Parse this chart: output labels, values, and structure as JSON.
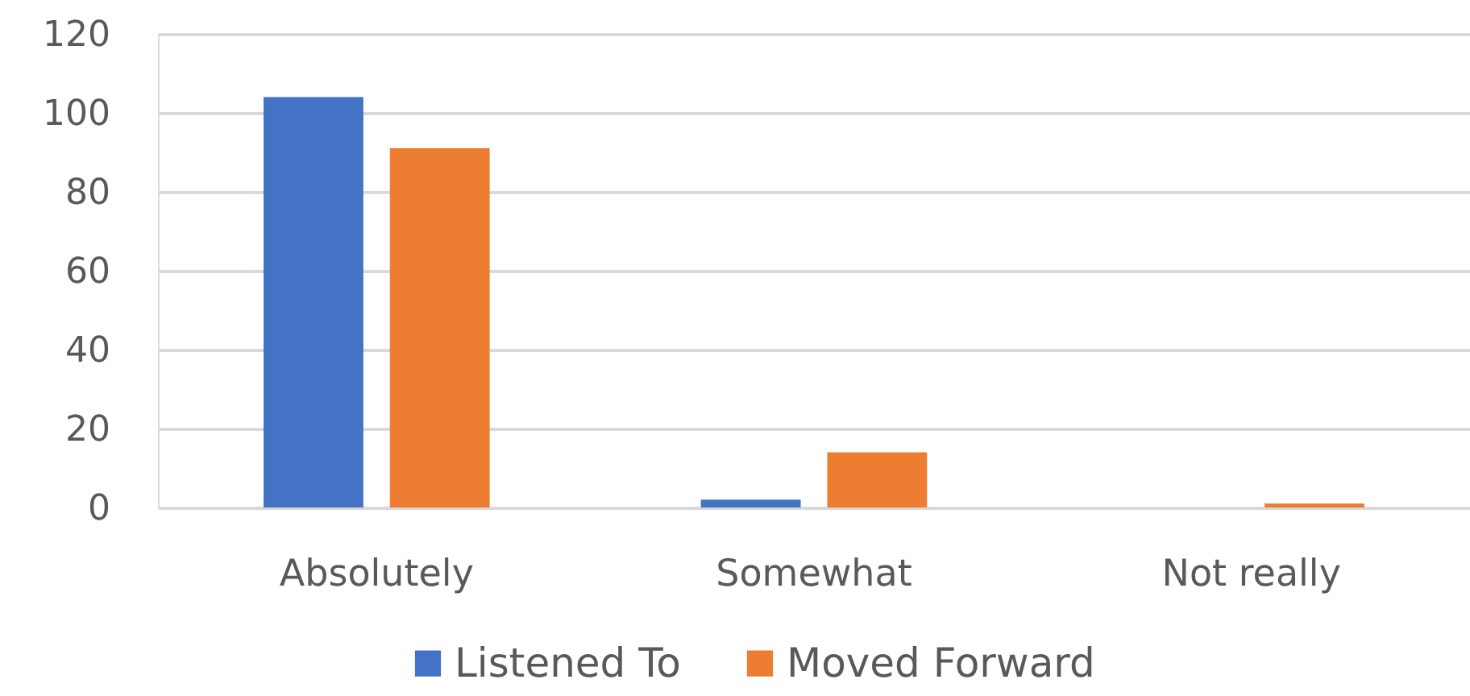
{
  "chart_data": {
    "type": "bar",
    "categories": [
      "Absolutely",
      "Somewhat",
      "Not really"
    ],
    "series": [
      {
        "name": "Listened To",
        "color": "#4472c4",
        "values": [
          104,
          2,
          0
        ]
      },
      {
        "name": "Moved Forward",
        "color": "#ed7d31",
        "values": [
          91,
          14,
          1
        ]
      }
    ],
    "ylim": [
      0,
      120
    ],
    "yticks": [
      0,
      20,
      40,
      60,
      80,
      100,
      120
    ],
    "grid": "y",
    "legend": "bottom"
  }
}
